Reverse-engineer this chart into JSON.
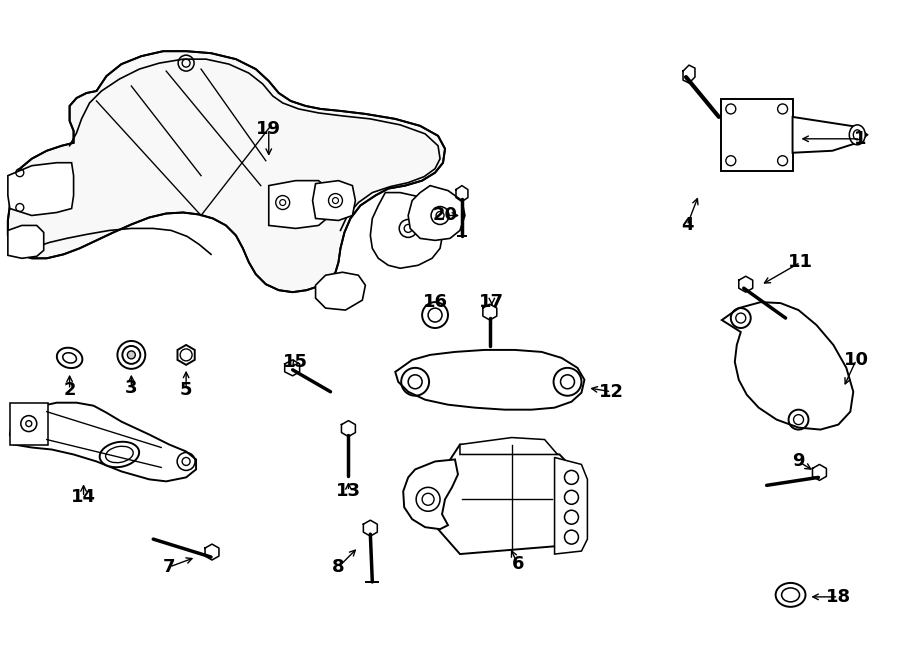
{
  "background_color": "#ffffff",
  "line_color": "#000000",
  "text_color": "#000000",
  "figsize": [
    9.0,
    6.61
  ],
  "dpi": 100
}
